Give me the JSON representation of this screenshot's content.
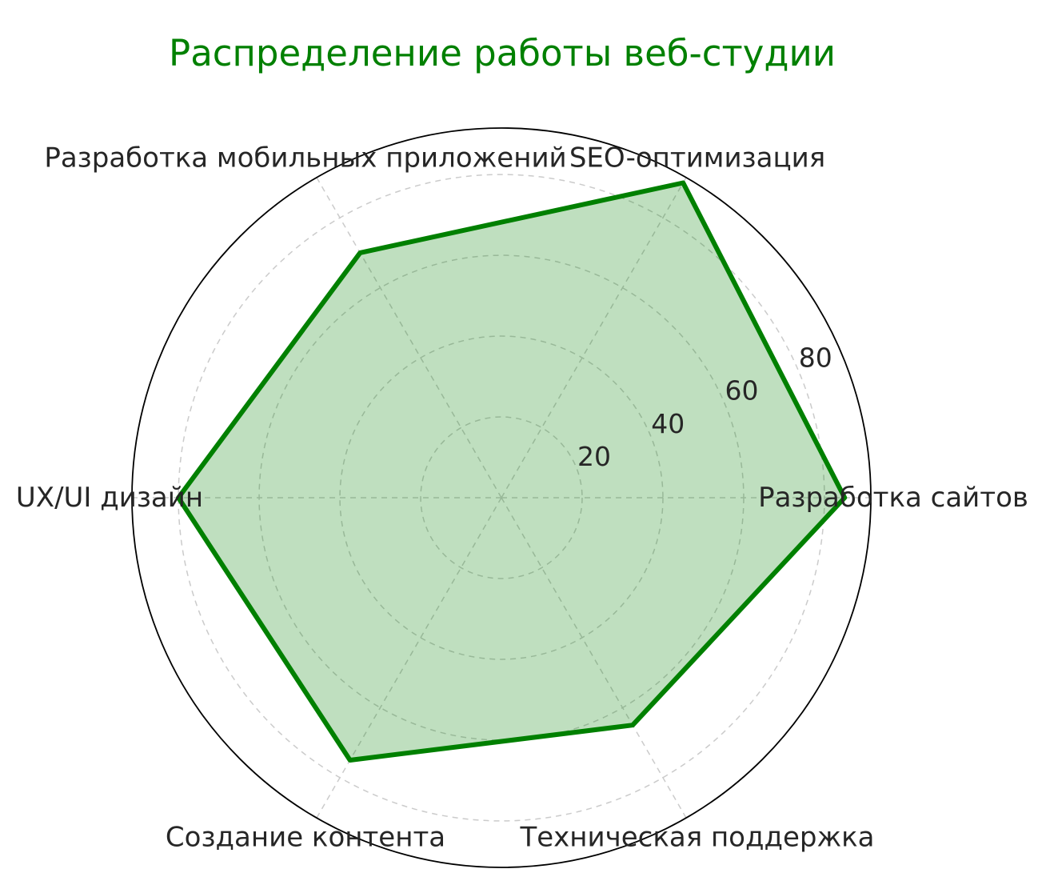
{
  "title": {
    "text": "Распределение работы веб-студии",
    "color": "#008000"
  },
  "chart_data": {
    "type": "radar",
    "categories": [
      "Разработка сайтов",
      "SEO-оптимизация",
      "Разработка мобильных приложений",
      "UX/UI дизайн",
      "Создание контента",
      "Техническая поддержка"
    ],
    "values": [
      85,
      90,
      70,
      80,
      75,
      65
    ],
    "angles_deg": [
      0,
      60,
      120,
      180,
      240,
      300
    ],
    "r_ticks": [
      20,
      40,
      60,
      80
    ],
    "r_tick_labels": [
      "20",
      "40",
      "60",
      "80"
    ],
    "r_max": 91.5,
    "r_axis_label_angle_deg": 24,
    "legend_position": "none",
    "grid": "on",
    "colors": {
      "series_line": "#008000",
      "series_fill": "rgba(0,128,0,0.25)",
      "grid_line": "#cbcbcb",
      "outer_spine": "#000000",
      "tick_label": "#262626",
      "category_label": "#262626",
      "background": "#ffffff"
    }
  }
}
